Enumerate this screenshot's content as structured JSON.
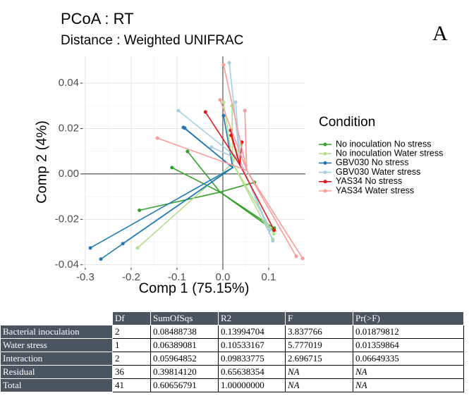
{
  "chart_data": {
    "type": "spider",
    "title": "PCoA : RT",
    "subtitle": "Distance : Weighted UNIFRAC",
    "annotation": "A",
    "x_label": "Comp 1 (75.15%)",
    "y_label": "Comp 2 (4%)",
    "legend_title": "Condition",
    "legend": "right",
    "grid": true,
    "hline": 0,
    "vline": 0,
    "xlim": [
      -0.306,
      0.18
    ],
    "ylim": [
      -0.0413,
      0.0518
    ],
    "xticks": [
      -0.3,
      -0.2,
      -0.1,
      {
        "value": 0,
        "label": "0.0"
      },
      0.1
    ],
    "yticks": [
      -0.04,
      -0.02,
      {
        "value": 0,
        "label": "0.00"
      },
      0.02,
      0.04
    ],
    "series": [
      {
        "name": "No inoculation No stress",
        "color": "#33a02c",
        "centroid": {
          "x": -0.006,
          "y": -0.008
        },
        "x": [
          -0.111,
          -0.077,
          -0.182,
          0.111,
          0.112,
          0.069
        ],
        "y": [
          0.0028,
          0.0099,
          -0.016,
          -0.0248,
          -0.0239,
          -0.0037
        ]
      },
      {
        "name": "No inoculation Water stress",
        "color": "#b2df8a",
        "centroid": {
          "x": 0.0215,
          "y": 0.0047
        },
        "x": [
          -0.186,
          0.0015,
          0.02,
          0.04,
          0.109,
          0.111
        ],
        "y": [
          -0.0326,
          0.0316,
          0.03,
          0.014,
          -0.0288,
          -0.0264
        ]
      },
      {
        "name": "GBV030 No stress",
        "color": "#1f78b4",
        "centroid": {
          "x": 0.0215,
          "y": 0.0028
        },
        "x": [
          -0.289,
          -0.266,
          -0.218,
          -0.086,
          0.0015,
          -0.083
        ],
        "y": [
          -0.0326,
          -0.0375,
          -0.0307,
          0.0205,
          0.0257,
          0.0202
        ]
      },
      {
        "name": "GBV030 Water stress",
        "color": "#a6cee3",
        "centroid": {
          "x": 0.037,
          "y": 0.0062
        },
        "x": [
          -0.097,
          0.014,
          0.028,
          0.109,
          0.102,
          -0.025
        ],
        "y": [
          0.0279,
          0.049,
          0.0316,
          -0.0295,
          -0.0248,
          0.0118
        ]
      },
      {
        "name": "YAS34 No stress",
        "color": "#e31a1c",
        "centroid": {
          "x": 0.037,
          "y": 0.004
        },
        "x": [
          -0.038,
          0.017,
          0.018,
          0.112,
          0.0415
        ],
        "y": [
          0.0273,
          0.0192,
          0.017,
          -0.0248,
          0.014
        ]
      },
      {
        "name": "YAS34 Water stress",
        "color": "#fb9a99",
        "centroid": {
          "x": 0.052,
          "y": 0.0016
        },
        "x": [
          -0.143,
          0.0015,
          0.048,
          0.16,
          0.174,
          -0.006
        ],
        "y": [
          0.0158,
          0.0481,
          0.0279,
          -0.0363,
          -0.0372,
          0.0326
        ]
      }
    ]
  },
  "table": {
    "columns": [
      "Df",
      "SumOfSqs",
      "R2",
      "F",
      "Pr(>F)"
    ],
    "rows": [
      [
        "Bacterial inoculation",
        "2",
        "0.08488738",
        "0.13994704",
        "3.837766",
        "0.01879812"
      ],
      [
        "Water stress",
        "1",
        "0.06389081",
        "0.10533167",
        "5.777019",
        "0.01359864"
      ],
      [
        "Interaction",
        "2",
        "0.05964852",
        "0.09833775",
        "2.696715",
        "0.06649335"
      ],
      [
        "Residual",
        "36",
        "0.39814120",
        "0.65638354",
        "NA",
        "NA"
      ],
      [
        "Total",
        "41",
        "0.60656791",
        "1.00000000",
        "NA",
        "NA"
      ]
    ]
  }
}
